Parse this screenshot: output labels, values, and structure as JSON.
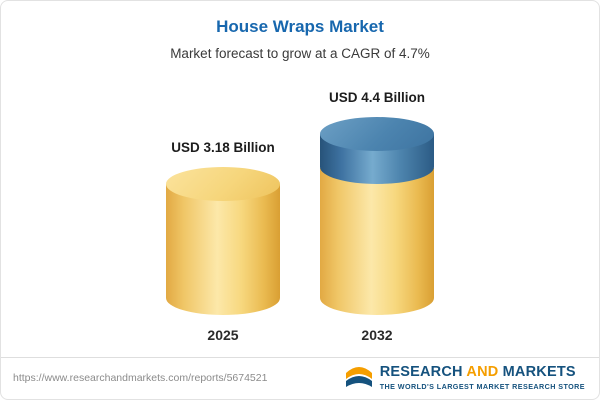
{
  "header": {
    "title": "House Wraps Market",
    "subtitle": "Market forecast to grow at a CAGR of 4.7%"
  },
  "chart_data": {
    "type": "bar",
    "categories": [
      "2025",
      "2032"
    ],
    "values": [
      3.18,
      4.4
    ],
    "value_labels": [
      "USD 3.18 Billion",
      "USD 4.4 Billion"
    ],
    "title": "House Wraps Market",
    "subtitle": "Market forecast to grow at a CAGR of 4.7%",
    "unit": "USD Billion",
    "cagr": "4.7%",
    "ylim": [
      0,
      4.4
    ],
    "legend": "none",
    "grid": false,
    "colors": {
      "base": "#f2cd68",
      "growth": "#4c84af"
    }
  },
  "footer": {
    "url": "https://www.researchandmarkets.com/reports/5674521",
    "logo": {
      "part1": "RESEARCH",
      "part2": "AND",
      "part3": "MARKETS",
      "tagline": "THE WORLD'S LARGEST MARKET RESEARCH STORE"
    }
  }
}
